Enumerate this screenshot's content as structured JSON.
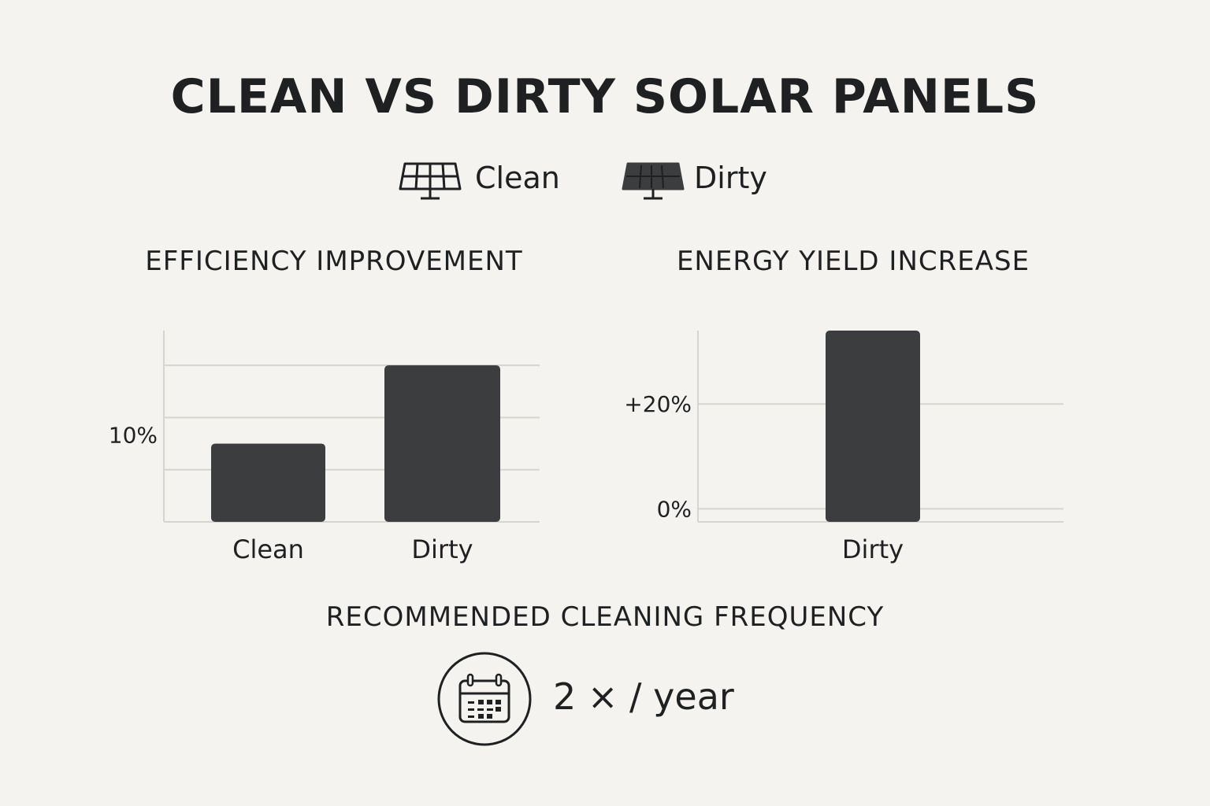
{
  "title": "CLEAN VS DIRTY SOLAR PANELS",
  "legend": [
    {
      "label": "Clean",
      "icon": "solar-panel-outline-icon"
    },
    {
      "label": "Dirty",
      "icon": "solar-panel-filled-icon"
    }
  ],
  "colors": {
    "bar": "#3b3d3e",
    "grid": "#d6d4cf",
    "background": "#f4f3ef",
    "text": "#1e2022"
  },
  "chart_data": [
    {
      "type": "bar",
      "title": "EFFICIENCY IMPROVEMENT",
      "categories": [
        "Clean",
        "Dirty"
      ],
      "values": [
        9,
        18
      ],
      "ylim": [
        0,
        22
      ],
      "yticks": [
        {
          "value": 10,
          "label": "10%"
        }
      ],
      "gridlines": [
        6,
        12,
        18
      ],
      "grid": true
    },
    {
      "type": "bar",
      "title": "ENERGY YIELD INCREASE",
      "categories": [
        "Dirty"
      ],
      "values": [
        34
      ],
      "ylim": [
        -2.5,
        34
      ],
      "yticks": [
        {
          "value": 0,
          "label": "0%"
        },
        {
          "value": 20,
          "label": "+20%"
        }
      ],
      "gridlines": [
        0,
        20
      ],
      "grid": true
    }
  ],
  "frequency": {
    "title": "RECOMMENDED CLEANING FREQUENCY",
    "value": "2 × / year",
    "icon": "calendar-icon"
  }
}
